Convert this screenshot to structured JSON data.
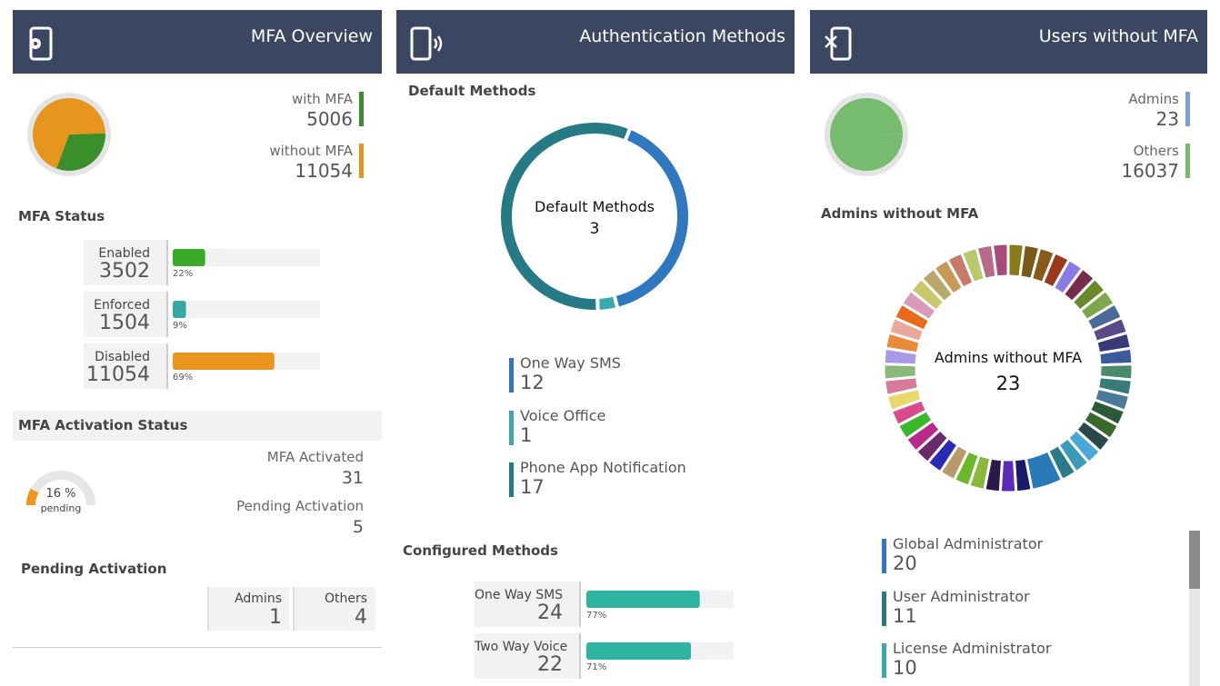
{
  "panels": [
    {
      "title": "MFA Overview",
      "overview": {
        "items": [
          {
            "label": "with MFA",
            "value": 5006,
            "color": "#3a8f2a"
          },
          {
            "label": "without MFA",
            "value": 11054,
            "color": "#e8951d"
          }
        ]
      },
      "status": {
        "title": "MFA Status",
        "rows": [
          {
            "label": "Enabled",
            "value": 3502,
            "percent": 22,
            "percent_label": "22%",
            "color": "#3aaa2a"
          },
          {
            "label": "Enforced",
            "value": 1504,
            "percent": 9,
            "percent_label": "9%",
            "color": "#36a7a5"
          },
          {
            "label": "Disabled",
            "value": 11054,
            "percent": 69,
            "percent_label": "69%",
            "color": "#ea951d"
          }
        ]
      },
      "activation": {
        "title": "MFA Activation Status",
        "gauge": {
          "percent": 16,
          "percent_label": "16 %",
          "caption": "pending",
          "color": "#f0961e"
        },
        "items": [
          {
            "label": "MFA Activated",
            "value": 31
          },
          {
            "label": "Pending Activation",
            "value": 5
          }
        ]
      },
      "pending": {
        "title": "Pending Activation",
        "items": [
          {
            "label": "Admins",
            "value": 1
          },
          {
            "label": "Others",
            "value": 4
          }
        ]
      }
    },
    {
      "title": "Authentication Methods",
      "default": {
        "title": "Default Methods",
        "center_label": "Default Methods",
        "center_value": 3,
        "items": [
          {
            "label": "One Way SMS",
            "value": 12,
            "color": "#2f78c0"
          },
          {
            "label": "Voice Office",
            "value": 1,
            "color": "#3aa8b0"
          },
          {
            "label": "Phone App Notification",
            "value": 17,
            "color": "#267a86"
          }
        ]
      },
      "configured": {
        "title": "Configured Methods",
        "color": "#2eb3a0",
        "rows": [
          {
            "label": "One Way SMS",
            "value": 24,
            "percent": 77,
            "percent_label": "77%"
          },
          {
            "label": "Two Way Voice",
            "value": 22,
            "percent": 71,
            "percent_label": "71%"
          }
        ]
      }
    },
    {
      "title": "Users without MFA",
      "overview": {
        "items": [
          {
            "label": "Admins",
            "value": 23,
            "color": "#7b9fd8"
          },
          {
            "label": "Others",
            "value": 16037,
            "color": "#77bb6f"
          }
        ]
      },
      "admins": {
        "title": "Admins without MFA",
        "center_label": "Admins without MFA",
        "center_value": 23,
        "segment_colors": [
          "#8a7a1a",
          "#7a5a1a",
          "#8a5a1a",
          "#9a3a1a",
          "#8a7ae8",
          "#7a2a4a",
          "#6a8a2a",
          "#7aa84a",
          "#4a6a9a",
          "#5a4a8a",
          "#3a3a7a",
          "#3a5a9a",
          "#4a8a6a",
          "#3a7a7a",
          "#4a7a9a",
          "#2a5a3a",
          "#3a6a2a",
          "#2a4a4a",
          "#4aa8d8",
          "#3a9aba",
          "#2a7a8a",
          "#2a7ab8",
          "#1a1a6a",
          "#5a2ab8",
          "#2a1a4a",
          "#8ab83a",
          "#6ab82a",
          "#b89a6a",
          "#2a2ab8",
          "#6a2a6a",
          "#b82a8a",
          "#3ab82a",
          "#d84a8a",
          "#e8d86a",
          "#d87a9a",
          "#8ab87a",
          "#a89ae8",
          "#e88a3a",
          "#e8a89a",
          "#e86a1a",
          "#d89ab8",
          "#c8c86a",
          "#b8a86a",
          "#c89a5a",
          "#c87a6a",
          "#b8c86a",
          "#b86a8a",
          "#a84a7a"
        ],
        "segment_values": [
          1,
          1,
          1,
          1,
          1,
          1,
          1,
          1,
          1,
          1,
          1,
          1,
          1,
          1,
          1,
          1,
          1,
          1,
          1,
          1,
          1,
          2,
          1,
          1,
          1,
          1,
          1,
          1,
          1,
          1,
          1,
          1,
          1,
          1,
          1,
          1,
          1,
          1,
          1,
          1,
          1,
          1,
          1,
          1,
          1,
          1,
          1,
          1
        ],
        "items": [
          {
            "label": "Global Administrator",
            "value": 20,
            "color": "#2f78c0"
          },
          {
            "label": "User Administrator",
            "value": 11,
            "color": "#267a86"
          },
          {
            "label": "License Administrator",
            "value": 10,
            "color": "#3aa8b0"
          }
        ]
      }
    }
  ]
}
